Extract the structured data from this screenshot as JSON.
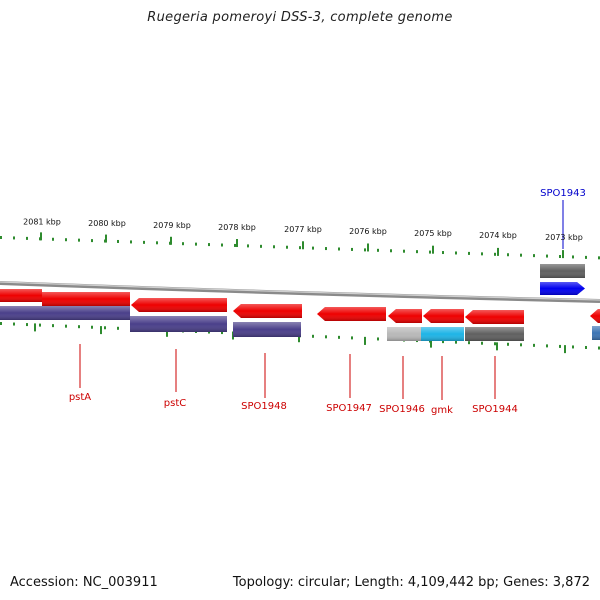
{
  "title": "Ruegeria pomeroyi DSS-3, complete genome",
  "footer": {
    "accession": "Accession: NC_003911",
    "summary": "Topology: circular; Length: 4,109,442 bp; Genes: 3,872"
  },
  "colors": {
    "backbone": "#8a8a8a",
    "tick": "#2e8b2e",
    "gene_red": "#ee0000",
    "gene_blue": "#0000ee",
    "gene_purple": "#4a3f8a",
    "gene_lightgray": "#b8b8b8",
    "gene_cyan": "#1eb4e6",
    "gene_darkgray": "#606060",
    "label_red": "#cc0000",
    "label_blue": "#0000cc"
  },
  "scale_labels": [
    "2081 kbp",
    "2080 kbp",
    "2079 kbp",
    "2078 kbp",
    "2077 kbp",
    "2076 kbp",
    "2075 kbp",
    "2074 kbp",
    "2073 kbp"
  ],
  "gene_labels": [
    {
      "text": "pstA",
      "color": "label_red"
    },
    {
      "text": "pstC",
      "color": "label_red"
    },
    {
      "text": "SPO1948",
      "color": "label_red"
    },
    {
      "text": "SPO1947",
      "color": "label_red"
    },
    {
      "text": "SPO1946",
      "color": "label_red"
    },
    {
      "text": "gmk",
      "color": "label_red"
    },
    {
      "text": "SPO1944",
      "color": "label_red"
    },
    {
      "text": "SPO1943",
      "color": "label_blue"
    }
  ]
}
